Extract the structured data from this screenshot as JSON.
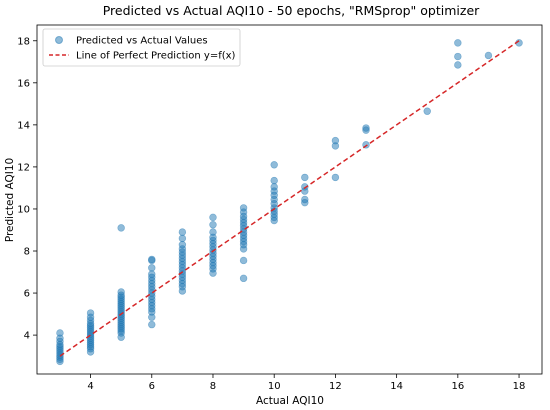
{
  "chart_data": {
    "type": "scatter",
    "title": "Predicted vs Actual AQI10 - 50 epochs, \"RMSprop\" optimizer",
    "xlabel": "Actual AQI10",
    "ylabel": "Predicted AQI10",
    "xlim": [
      2.25,
      18.75
    ],
    "ylim": [
      2.15,
      18.75
    ],
    "xticks": [
      4,
      6,
      8,
      10,
      12,
      14,
      16,
      18
    ],
    "yticks": [
      4,
      6,
      8,
      10,
      12,
      14,
      16,
      18
    ],
    "grid": false,
    "legend_position": "top-left",
    "series": [
      {
        "name": "Predicted vs Actual Values",
        "kind": "scatter",
        "color": "#1f77b4",
        "alpha": 0.5,
        "points": [
          [
            3,
            2.75
          ],
          [
            3,
            2.85
          ],
          [
            3,
            2.95
          ],
          [
            3,
            3.05
          ],
          [
            3,
            3.15
          ],
          [
            3,
            3.25
          ],
          [
            3,
            3.35
          ],
          [
            3,
            3.45
          ],
          [
            3,
            3.55
          ],
          [
            3,
            3.7
          ],
          [
            3,
            3.85
          ],
          [
            3,
            4.1
          ],
          [
            4,
            3.2
          ],
          [
            4,
            3.35
          ],
          [
            4,
            3.45
          ],
          [
            4,
            3.55
          ],
          [
            4,
            3.65
          ],
          [
            4,
            3.75
          ],
          [
            4,
            3.85
          ],
          [
            4,
            3.95
          ],
          [
            4,
            4.05
          ],
          [
            4,
            4.15
          ],
          [
            4,
            4.25
          ],
          [
            4,
            4.35
          ],
          [
            4,
            4.45
          ],
          [
            4,
            4.55
          ],
          [
            4,
            4.7
          ],
          [
            4,
            4.85
          ],
          [
            4,
            5.05
          ],
          [
            5,
            3.9
          ],
          [
            5,
            4.1
          ],
          [
            5,
            4.2
          ],
          [
            5,
            4.3
          ],
          [
            5,
            4.4
          ],
          [
            5,
            4.5
          ],
          [
            5,
            4.6
          ],
          [
            5,
            4.7
          ],
          [
            5,
            4.8
          ],
          [
            5,
            4.9
          ],
          [
            5,
            5.0
          ],
          [
            5,
            5.1
          ],
          [
            5,
            5.2
          ],
          [
            5,
            5.3
          ],
          [
            5,
            5.4
          ],
          [
            5,
            5.5
          ],
          [
            5,
            5.6
          ],
          [
            5,
            5.7
          ],
          [
            5,
            5.8
          ],
          [
            5,
            5.9
          ],
          [
            5,
            6.05
          ],
          [
            5,
            9.1
          ],
          [
            6,
            4.5
          ],
          [
            6,
            4.85
          ],
          [
            6,
            5.1
          ],
          [
            6,
            5.25
          ],
          [
            6,
            5.4
          ],
          [
            6,
            5.55
          ],
          [
            6,
            5.7
          ],
          [
            6,
            5.85
          ],
          [
            6,
            6.0
          ],
          [
            6,
            6.15
          ],
          [
            6,
            6.3
          ],
          [
            6,
            6.45
          ],
          [
            6,
            6.6
          ],
          [
            6,
            6.75
          ],
          [
            6,
            6.9
          ],
          [
            6,
            7.2
          ],
          [
            6,
            7.55
          ],
          [
            6,
            7.6
          ],
          [
            7,
            6.1
          ],
          [
            7,
            6.3
          ],
          [
            7,
            6.45
          ],
          [
            7,
            6.6
          ],
          [
            7,
            6.75
          ],
          [
            7,
            6.9
          ],
          [
            7,
            7.05
          ],
          [
            7,
            7.2
          ],
          [
            7,
            7.35
          ],
          [
            7,
            7.5
          ],
          [
            7,
            7.65
          ],
          [
            7,
            7.8
          ],
          [
            7,
            7.95
          ],
          [
            7,
            8.1
          ],
          [
            7,
            8.3
          ],
          [
            7,
            8.6
          ],
          [
            7,
            8.9
          ],
          [
            8,
            6.95
          ],
          [
            8,
            7.15
          ],
          [
            8,
            7.3
          ],
          [
            8,
            7.45
          ],
          [
            8,
            7.6
          ],
          [
            8,
            7.75
          ],
          [
            8,
            7.9
          ],
          [
            8,
            8.05
          ],
          [
            8,
            8.2
          ],
          [
            8,
            8.35
          ],
          [
            8,
            8.5
          ],
          [
            8,
            8.65
          ],
          [
            8,
            8.9
          ],
          [
            8,
            9.25
          ],
          [
            8,
            9.6
          ],
          [
            9,
            6.7
          ],
          [
            9,
            7.55
          ],
          [
            9,
            8.1
          ],
          [
            9,
            8.3
          ],
          [
            9,
            8.45
          ],
          [
            9,
            8.6
          ],
          [
            9,
            8.75
          ],
          [
            9,
            8.9
          ],
          [
            9,
            9.05
          ],
          [
            9,
            9.2
          ],
          [
            9,
            9.35
          ],
          [
            9,
            9.5
          ],
          [
            9,
            9.65
          ],
          [
            9,
            9.85
          ],
          [
            9,
            10.05
          ],
          [
            10,
            9.45
          ],
          [
            10,
            9.6
          ],
          [
            10,
            9.75
          ],
          [
            10,
            9.9
          ],
          [
            10,
            10.05
          ],
          [
            10,
            10.25
          ],
          [
            10,
            10.45
          ],
          [
            10,
            10.65
          ],
          [
            10,
            10.85
          ],
          [
            10,
            11.05
          ],
          [
            10,
            11.35
          ],
          [
            10,
            12.1
          ],
          [
            11,
            10.3
          ],
          [
            11,
            10.45
          ],
          [
            11,
            10.85
          ],
          [
            11,
            11.05
          ],
          [
            11,
            11.5
          ],
          [
            12,
            11.5
          ],
          [
            12,
            13.0
          ],
          [
            12,
            13.25
          ],
          [
            13,
            13.05
          ],
          [
            13,
            13.75
          ],
          [
            13,
            13.85
          ],
          [
            15,
            14.65
          ],
          [
            16,
            16.85
          ],
          [
            16,
            17.25
          ],
          [
            16,
            17.9
          ],
          [
            17,
            17.3
          ],
          [
            18,
            17.9
          ]
        ]
      },
      {
        "name": "Line of Perfect Prediction y=f(x)",
        "kind": "line",
        "style": "dashed",
        "color": "#d62728",
        "points": [
          [
            3,
            3
          ],
          [
            18,
            18
          ]
        ]
      }
    ]
  }
}
